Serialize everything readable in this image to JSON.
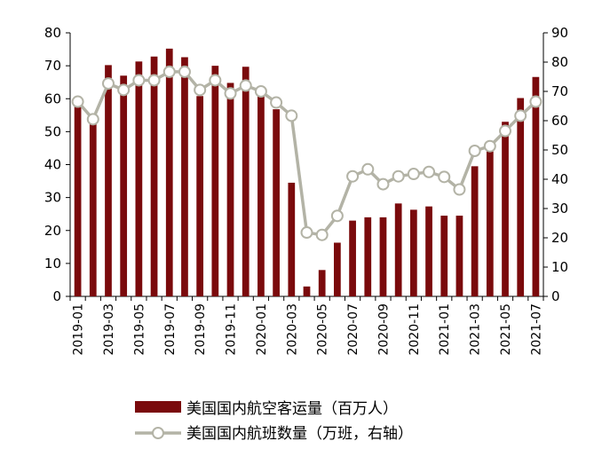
{
  "chart_data": {
    "type": "bar+line",
    "title": "",
    "x": [
      "2019-01",
      "2019-02",
      "2019-03",
      "2019-04",
      "2019-05",
      "2019-06",
      "2019-07",
      "2019-08",
      "2019-09",
      "2019-10",
      "2019-11",
      "2019-12",
      "2020-01",
      "2020-02",
      "2020-03",
      "2020-04",
      "2020-05",
      "2020-06",
      "2020-07",
      "2020-08",
      "2020-09",
      "2020-10",
      "2020-11",
      "2020-12",
      "2021-01",
      "2021-02",
      "2021-03",
      "2021-04",
      "2021-05",
      "2021-06",
      "2021-07"
    ],
    "x_tick_labels": [
      "2019-01",
      "2019-03",
      "2019-05",
      "2019-07",
      "2019-09",
      "2019-11",
      "2020-01",
      "2020-03",
      "2020-05",
      "2020-07",
      "2020-09",
      "2020-11",
      "2021-01",
      "2021-03",
      "2021-05",
      "2021-07"
    ],
    "left_axis": {
      "ylim": [
        0,
        80
      ],
      "ticks": [
        0,
        10,
        20,
        30,
        40,
        50,
        60,
        70,
        80
      ]
    },
    "right_axis": {
      "ylim": [
        0,
        90
      ],
      "ticks": [
        0,
        10,
        20,
        30,
        40,
        50,
        60,
        70,
        80,
        90
      ]
    },
    "series": [
      {
        "name": "美国国内航空客运量（百万人）",
        "type": "bar",
        "axis": "left",
        "color": "#7a0a0c",
        "values": [
          57.8,
          54.5,
          70.2,
          67,
          71.3,
          72.8,
          75.2,
          72.6,
          60.8,
          70,
          64.8,
          69.7,
          61.8,
          56.8,
          34.5,
          3,
          8,
          16.3,
          23,
          24,
          24,
          28.2,
          26.3,
          27.3,
          24.5,
          24.5,
          39.5,
          44,
          53,
          60.2,
          66.6
        ]
      },
      {
        "name": "美国国内航班数量（万班，右轴）",
        "type": "line",
        "axis": "right",
        "color": "#b3b3a6",
        "values": [
          66.5,
          60.5,
          72.7,
          70.5,
          73.8,
          73.8,
          76.7,
          76.7,
          70.5,
          73.8,
          69.3,
          72,
          70,
          66.2,
          61.7,
          21.8,
          21,
          27.5,
          41,
          43.4,
          38.3,
          41,
          41.8,
          42.5,
          40.8,
          36.5,
          49.7,
          51.3,
          56.5,
          61.7,
          66.5
        ]
      }
    ]
  }
}
